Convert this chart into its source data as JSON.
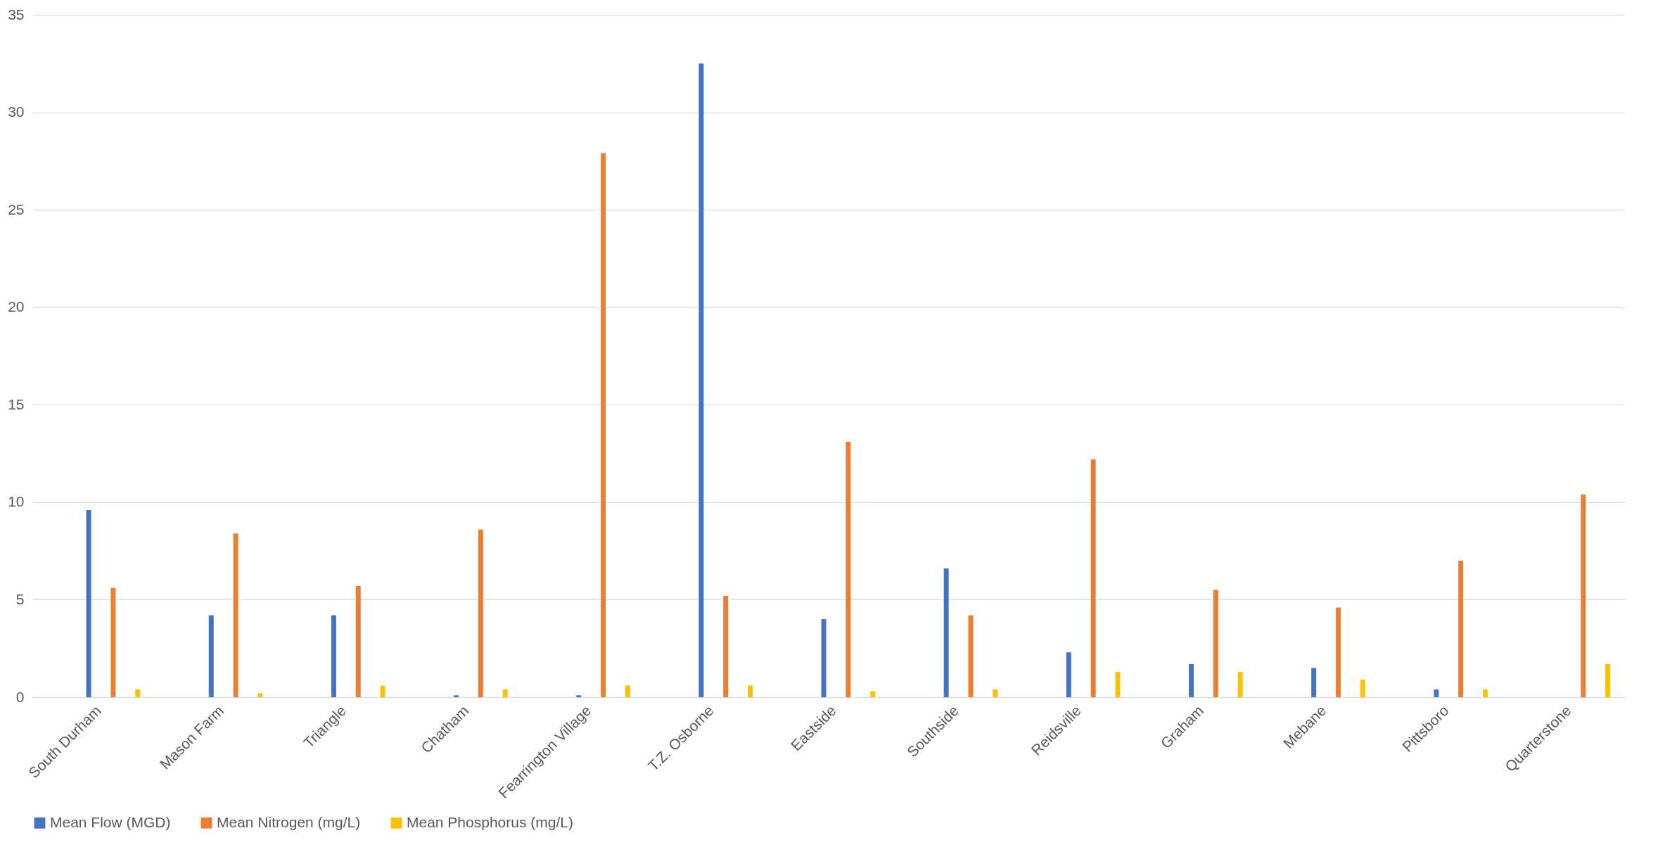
{
  "chart_data": {
    "type": "bar",
    "categories": [
      "South Durham",
      "Mason Farm",
      "Triangle",
      "Chatham",
      "Fearrington Village",
      "T.Z. Osborne",
      "Eastside",
      "Southside",
      "Reidsville",
      "Graham",
      "Mebane",
      "Pittsboro",
      "Quarterstone"
    ],
    "series": [
      {
        "name": "Mean Flow (MGD)",
        "color": "#4472c4",
        "values": [
          9.6,
          4.2,
          4.2,
          0.1,
          0.1,
          32.5,
          4.0,
          6.6,
          2.3,
          1.7,
          1.5,
          0.4,
          null
        ]
      },
      {
        "name": "Mean Nitrogen (mg/L)",
        "color": "#ed7d31",
        "values": [
          5.6,
          8.4,
          5.7,
          8.6,
          27.9,
          5.2,
          13.1,
          4.2,
          12.2,
          5.5,
          4.6,
          7.0,
          10.4
        ]
      },
      {
        "name": "Mean Phosphorus (mg/L)",
        "color": "#ffc000",
        "values": [
          0.4,
          0.2,
          0.6,
          0.4,
          0.6,
          0.6,
          0.3,
          0.4,
          1.3,
          1.3,
          0.9,
          0.4,
          1.7
        ]
      }
    ],
    "ylim": [
      0,
      35
    ],
    "yticks": [
      0,
      5,
      10,
      15,
      20,
      25,
      30,
      35
    ],
    "grid": "y",
    "legend": "bottom"
  }
}
